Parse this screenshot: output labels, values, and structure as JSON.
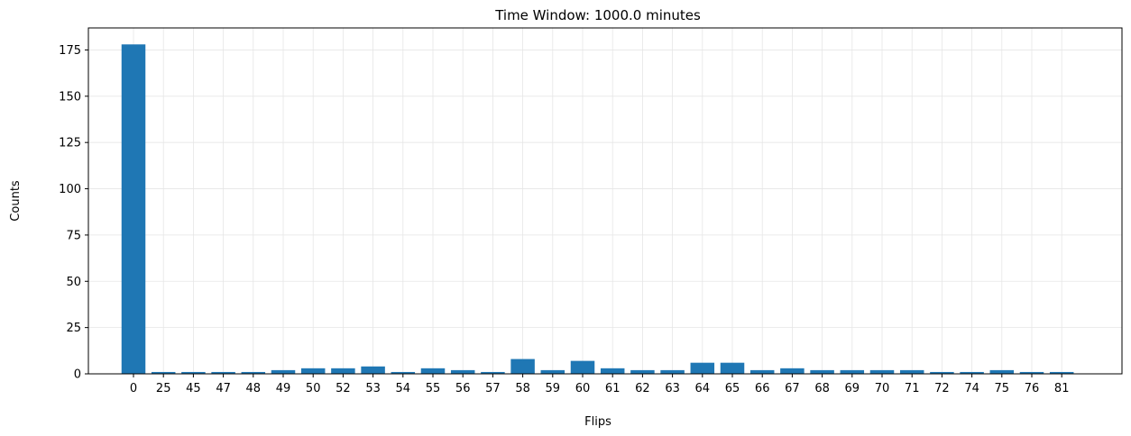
{
  "chart_data": {
    "type": "bar",
    "title": "Time Window: 1000.0 minutes",
    "xlabel": "Flips",
    "ylabel": "Counts",
    "categories": [
      "0",
      "25",
      "45",
      "47",
      "48",
      "49",
      "50",
      "52",
      "53",
      "54",
      "55",
      "56",
      "57",
      "58",
      "59",
      "60",
      "61",
      "62",
      "63",
      "64",
      "65",
      "66",
      "67",
      "68",
      "69",
      "70",
      "71",
      "72",
      "74",
      "75",
      "76",
      "81"
    ],
    "values": [
      178,
      1,
      1,
      1,
      1,
      2,
      3,
      3,
      4,
      1,
      3,
      2,
      1,
      8,
      2,
      7,
      3,
      2,
      2,
      6,
      6,
      2,
      3,
      2,
      2,
      2,
      2,
      1,
      1,
      2,
      1,
      1
    ],
    "ylim": [
      0,
      186.9
    ],
    "yticks": [
      0,
      25,
      50,
      75,
      100,
      125,
      150,
      175
    ],
    "grid": true,
    "bar_color": "#1f77b4"
  }
}
